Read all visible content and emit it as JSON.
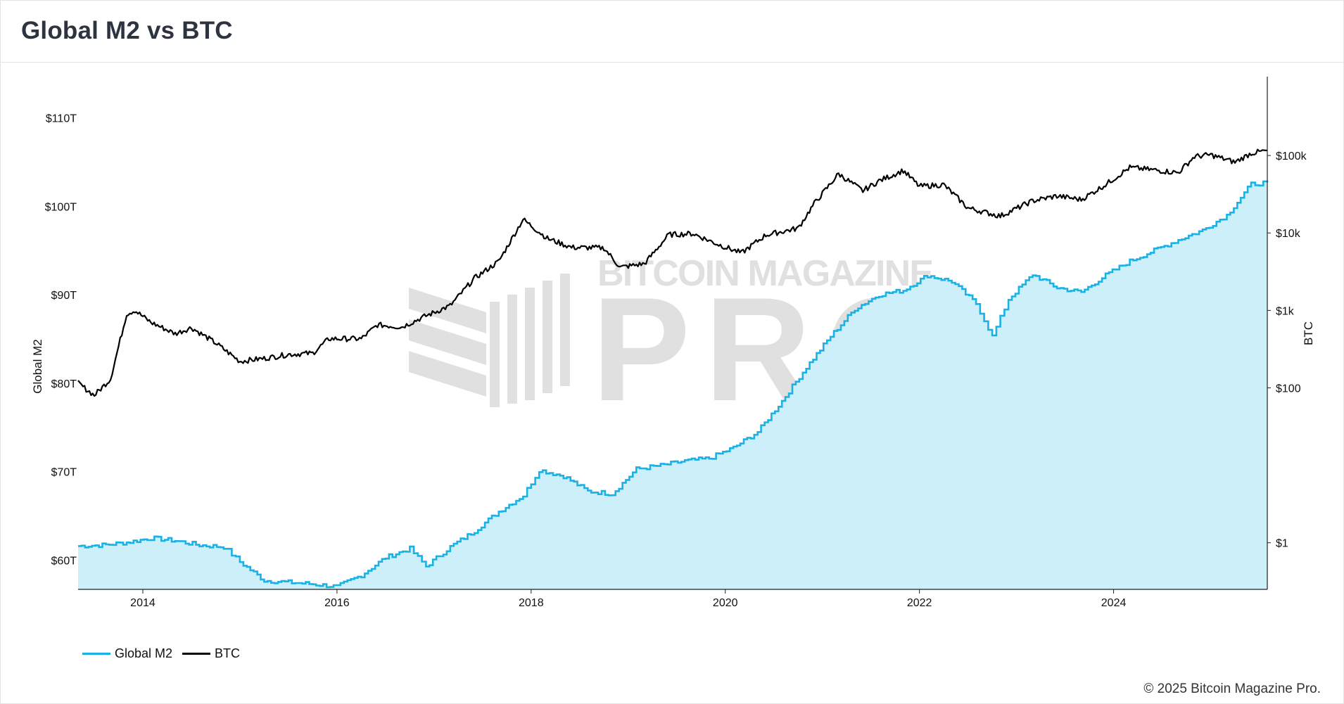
{
  "header": {
    "title": "Global M2 vs BTC"
  },
  "watermark": {
    "brand_top": "BITCOIN MAGAZINE",
    "brand_main": "PRO",
    "registered": "®"
  },
  "footer": {
    "copyright": "© 2025 Bitcoin Magazine Pro."
  },
  "colors": {
    "m2_line": "#1ab1e6",
    "m2_fill": "#cdeff9",
    "btc_line": "#000000",
    "axis": "#222222",
    "watermark": "#bcbcbc",
    "watermark_o": "#8fc8d6"
  },
  "chart_data": {
    "type": "line",
    "title": "Global M2 vs BTC",
    "xlabel": "",
    "x_ticks": [
      "2014",
      "2016",
      "2018",
      "2020",
      "2022",
      "2024"
    ],
    "x_range": [
      "2013-05",
      "2025-08"
    ],
    "y_left": {
      "label": "Global M2",
      "ticks": [
        "$60T",
        "$70T",
        "$80T",
        "$90T",
        "$100T",
        "$110T"
      ],
      "tick_values": [
        60,
        70,
        80,
        90,
        100,
        110
      ],
      "range": [
        56.7,
        114.5
      ],
      "unit": "trillion USD"
    },
    "y_right": {
      "label": "BTC",
      "scale": "log",
      "ticks": [
        "$1",
        "$100",
        "$1k",
        "$10k",
        "$100k"
      ],
      "tick_values": [
        1,
        100,
        1000,
        10000,
        100000
      ],
      "range": [
        0.25,
        1000000
      ]
    },
    "legend_position": "bottom-left",
    "grid": false,
    "series": [
      {
        "name": "Global M2",
        "axis": "left",
        "style": "area",
        "points": [
          [
            "2013-05",
            61.6
          ],
          [
            "2013-08",
            61.7
          ],
          [
            "2013-11",
            62.0
          ],
          [
            "2014-02",
            62.5
          ],
          [
            "2014-05",
            62.2
          ],
          [
            "2014-08",
            61.7
          ],
          [
            "2014-11",
            61.5
          ],
          [
            "2015-01",
            59.8
          ],
          [
            "2015-04",
            57.7
          ],
          [
            "2015-07",
            57.5
          ],
          [
            "2015-10",
            57.3
          ],
          [
            "2016-01",
            57.0
          ],
          [
            "2016-04",
            58.3
          ],
          [
            "2016-07",
            60.3
          ],
          [
            "2016-10",
            61.3
          ],
          [
            "2016-12",
            59.3
          ],
          [
            "2017-03",
            61.5
          ],
          [
            "2017-06",
            63.3
          ],
          [
            "2017-09",
            65.5
          ],
          [
            "2017-12",
            67.3
          ],
          [
            "2018-02",
            70.2
          ],
          [
            "2018-05",
            69.5
          ],
          [
            "2018-08",
            67.8
          ],
          [
            "2018-11",
            67.5
          ],
          [
            "2019-02",
            70.3
          ],
          [
            "2019-05",
            70.7
          ],
          [
            "2019-08",
            71.2
          ],
          [
            "2019-11",
            71.5
          ],
          [
            "2020-02",
            72.7
          ],
          [
            "2020-05",
            74.5
          ],
          [
            "2020-08",
            78.0
          ],
          [
            "2020-11",
            81.8
          ],
          [
            "2021-02",
            85.3
          ],
          [
            "2021-05",
            88.4
          ],
          [
            "2021-08",
            90.0
          ],
          [
            "2021-11",
            90.5
          ],
          [
            "2022-02",
            92.2
          ],
          [
            "2022-05",
            91.5
          ],
          [
            "2022-08",
            89.0
          ],
          [
            "2022-10",
            85.3
          ],
          [
            "2022-12",
            89.5
          ],
          [
            "2023-03",
            92.3
          ],
          [
            "2023-06",
            90.8
          ],
          [
            "2023-09",
            90.3
          ],
          [
            "2023-12",
            92.2
          ],
          [
            "2024-03",
            93.8
          ],
          [
            "2024-06",
            95.0
          ],
          [
            "2024-09",
            96.2
          ],
          [
            "2024-12",
            97.3
          ],
          [
            "2025-03",
            99.0
          ],
          [
            "2025-06",
            102.5
          ],
          [
            "2025-08",
            102.7
          ]
        ]
      },
      {
        "name": "BTC",
        "axis": "right",
        "style": "line",
        "points": [
          [
            "2013-05",
            115
          ],
          [
            "2013-07",
            80
          ],
          [
            "2013-09",
            130
          ],
          [
            "2013-11",
            900
          ],
          [
            "2013-12",
            1000
          ],
          [
            "2014-02",
            700
          ],
          [
            "2014-05",
            500
          ],
          [
            "2014-07",
            600
          ],
          [
            "2014-10",
            380
          ],
          [
            "2015-01",
            220
          ],
          [
            "2015-04",
            240
          ],
          [
            "2015-07",
            270
          ],
          [
            "2015-10",
            280
          ],
          [
            "2015-12",
            430
          ],
          [
            "2016-04",
            430
          ],
          [
            "2016-06",
            650
          ],
          [
            "2016-09",
            610
          ],
          [
            "2016-12",
            850
          ],
          [
            "2017-03",
            1150
          ],
          [
            "2017-06",
            2600
          ],
          [
            "2017-09",
            4300
          ],
          [
            "2017-12",
            15000
          ],
          [
            "2018-03",
            8500
          ],
          [
            "2018-06",
            6500
          ],
          [
            "2018-10",
            6400
          ],
          [
            "2018-12",
            3600
          ],
          [
            "2019-03",
            4000
          ],
          [
            "2019-06",
            9500
          ],
          [
            "2019-09",
            9800
          ],
          [
            "2019-12",
            7200
          ],
          [
            "2020-03",
            5500
          ],
          [
            "2020-06",
            9400
          ],
          [
            "2020-10",
            11500
          ],
          [
            "2020-12",
            24000
          ],
          [
            "2021-03",
            58000
          ],
          [
            "2021-06",
            35000
          ],
          [
            "2021-08",
            47000
          ],
          [
            "2021-11",
            64000
          ],
          [
            "2022-01",
            40000
          ],
          [
            "2022-04",
            42000
          ],
          [
            "2022-07",
            21000
          ],
          [
            "2022-11",
            16500
          ],
          [
            "2023-03",
            26000
          ],
          [
            "2023-06",
            30000
          ],
          [
            "2023-09",
            27000
          ],
          [
            "2023-12",
            42000
          ],
          [
            "2024-03",
            70000
          ],
          [
            "2024-06",
            65000
          ],
          [
            "2024-09",
            60000
          ],
          [
            "2024-11",
            97000
          ],
          [
            "2025-01",
            102000
          ],
          [
            "2025-04",
            82000
          ],
          [
            "2025-06",
            107000
          ],
          [
            "2025-08",
            116000
          ]
        ]
      }
    ]
  }
}
